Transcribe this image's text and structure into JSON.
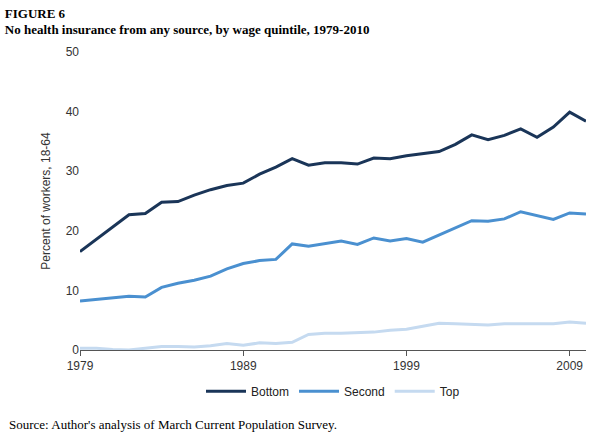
{
  "chart_data": {
    "type": "line",
    "title": "FIGURE 6",
    "subtitle": "No health insurance from any source, by wage quintile, 1979-2010",
    "y_label": "Percent of workers, 18-64",
    "source": "Source: Author's analysis of March Current Population Survey.",
    "x": [
      1979,
      1980,
      1981,
      1982,
      1983,
      1984,
      1985,
      1986,
      1987,
      1988,
      1989,
      1990,
      1991,
      1992,
      1993,
      1994,
      1995,
      1996,
      1997,
      1998,
      1999,
      2000,
      2001,
      2002,
      2003,
      2004,
      2005,
      2006,
      2007,
      2008,
      2009,
      2010
    ],
    "series": [
      {
        "name": "Bottom",
        "color": "#1a3558",
        "values": [
          16.5,
          18.6,
          20.7,
          22.7,
          22.9,
          24.8,
          24.9,
          26.0,
          26.9,
          27.6,
          28.0,
          29.5,
          30.7,
          32.1,
          31.0,
          31.4,
          31.4,
          31.2,
          32.2,
          32.1,
          32.6,
          32.9,
          33.3,
          34.5,
          36.1,
          35.3,
          36.0,
          37.1,
          35.7,
          37.4,
          39.9,
          38.4
        ]
      },
      {
        "name": "Second",
        "color": "#4a90d0",
        "values": [
          8.2,
          8.5,
          8.8,
          9.0,
          8.9,
          10.5,
          11.2,
          11.7,
          12.4,
          13.6,
          14.5,
          15.0,
          15.2,
          17.8,
          17.4,
          17.9,
          18.3,
          17.7,
          18.8,
          18.3,
          18.7,
          18.1,
          19.3,
          20.4,
          21.7,
          21.6,
          22.0,
          23.2,
          22.5,
          21.9,
          23.0,
          22.8
        ]
      },
      {
        "name": "Top",
        "color": "#c5daf0",
        "values": [
          0.3,
          0.3,
          0.1,
          0.0,
          0.3,
          0.6,
          0.6,
          0.5,
          0.7,
          1.1,
          0.8,
          1.2,
          1.1,
          1.3,
          2.6,
          2.8,
          2.8,
          2.9,
          3.0,
          3.3,
          3.5,
          4.0,
          4.5,
          4.4,
          4.3,
          4.2,
          4.4,
          4.4,
          4.4,
          4.4,
          4.7,
          4.5
        ]
      }
    ],
    "xlim": [
      1979,
      2010
    ],
    "xticks": [
      1979,
      1989,
      1999,
      2009
    ],
    "ylim": [
      0,
      50
    ],
    "yticks": [
      0,
      10,
      20,
      30,
      40,
      50
    ],
    "grid": false,
    "legend": "bottom"
  }
}
